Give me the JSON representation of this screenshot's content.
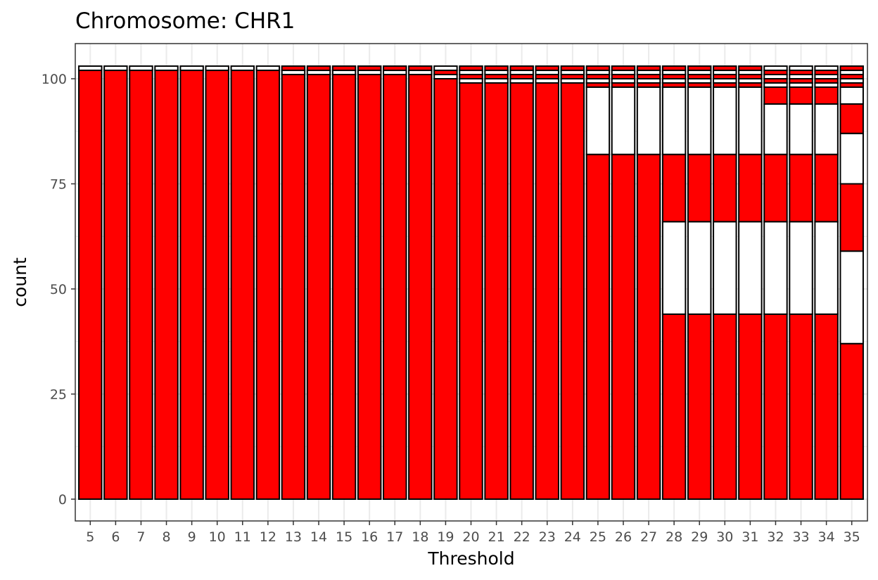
{
  "chart_data": {
    "type": "bar",
    "title": "Chromosome: CHR1",
    "xlabel": "Threshold",
    "ylabel": "count",
    "categories": [
      "5",
      "6",
      "7",
      "8",
      "9",
      "10",
      "11",
      "12",
      "13",
      "14",
      "15",
      "16",
      "17",
      "18",
      "19",
      "20",
      "21",
      "22",
      "23",
      "24",
      "25",
      "26",
      "27",
      "28",
      "29",
      "30",
      "31",
      "32",
      "33",
      "34",
      "35"
    ],
    "stack_segments_bottom_to_top": [
      [
        102,
        1
      ],
      [
        102,
        1
      ],
      [
        102,
        1
      ],
      [
        102,
        1
      ],
      [
        102,
        1
      ],
      [
        102,
        1
      ],
      [
        102,
        1
      ],
      [
        102,
        1
      ],
      [
        101,
        1,
        1
      ],
      [
        101,
        1,
        1
      ],
      [
        101,
        1,
        1
      ],
      [
        101,
        1,
        1
      ],
      [
        101,
        1,
        1
      ],
      [
        101,
        1,
        1
      ],
      [
        100,
        1,
        1,
        1
      ],
      [
        99,
        1,
        1,
        1,
        1
      ],
      [
        99,
        1,
        1,
        1,
        1
      ],
      [
        99,
        1,
        1,
        1,
        1
      ],
      [
        99,
        1,
        1,
        1,
        1
      ],
      [
        99,
        1,
        1,
        1,
        1
      ],
      [
        82,
        16,
        1,
        1,
        1,
        1,
        1
      ],
      [
        82,
        16,
        1,
        1,
        1,
        1,
        1
      ],
      [
        82,
        16,
        1,
        1,
        1,
        1,
        1
      ],
      [
        44,
        22,
        16,
        16,
        1,
        1,
        1,
        1,
        1
      ],
      [
        44,
        22,
        16,
        16,
        1,
        1,
        1,
        1,
        1
      ],
      [
        44,
        22,
        16,
        16,
        1,
        1,
        1,
        1,
        1
      ],
      [
        44,
        22,
        16,
        16,
        1,
        1,
        1,
        1,
        1
      ],
      [
        44,
        22,
        16,
        12,
        4,
        1,
        1,
        1,
        1,
        1
      ],
      [
        44,
        22,
        16,
        12,
        4,
        1,
        1,
        1,
        1,
        1
      ],
      [
        44,
        22,
        16,
        12,
        4,
        1,
        1,
        1,
        1,
        1
      ],
      [
        37,
        22,
        16,
        12,
        7,
        4,
        1,
        1,
        1,
        1,
        1
      ]
    ],
    "segment_colors_alternating": [
      "#ff0000",
      "#ffffff"
    ],
    "ylim": [
      0,
      104
    ],
    "y_ticks": [
      0,
      25,
      50,
      75,
      100
    ],
    "grid": true,
    "theme": "bw",
    "colors": {
      "red": "#ff0000",
      "white": "#ffffff",
      "outline": "#000000",
      "grid": "#ebebeb",
      "panel_border": "#333333"
    }
  }
}
